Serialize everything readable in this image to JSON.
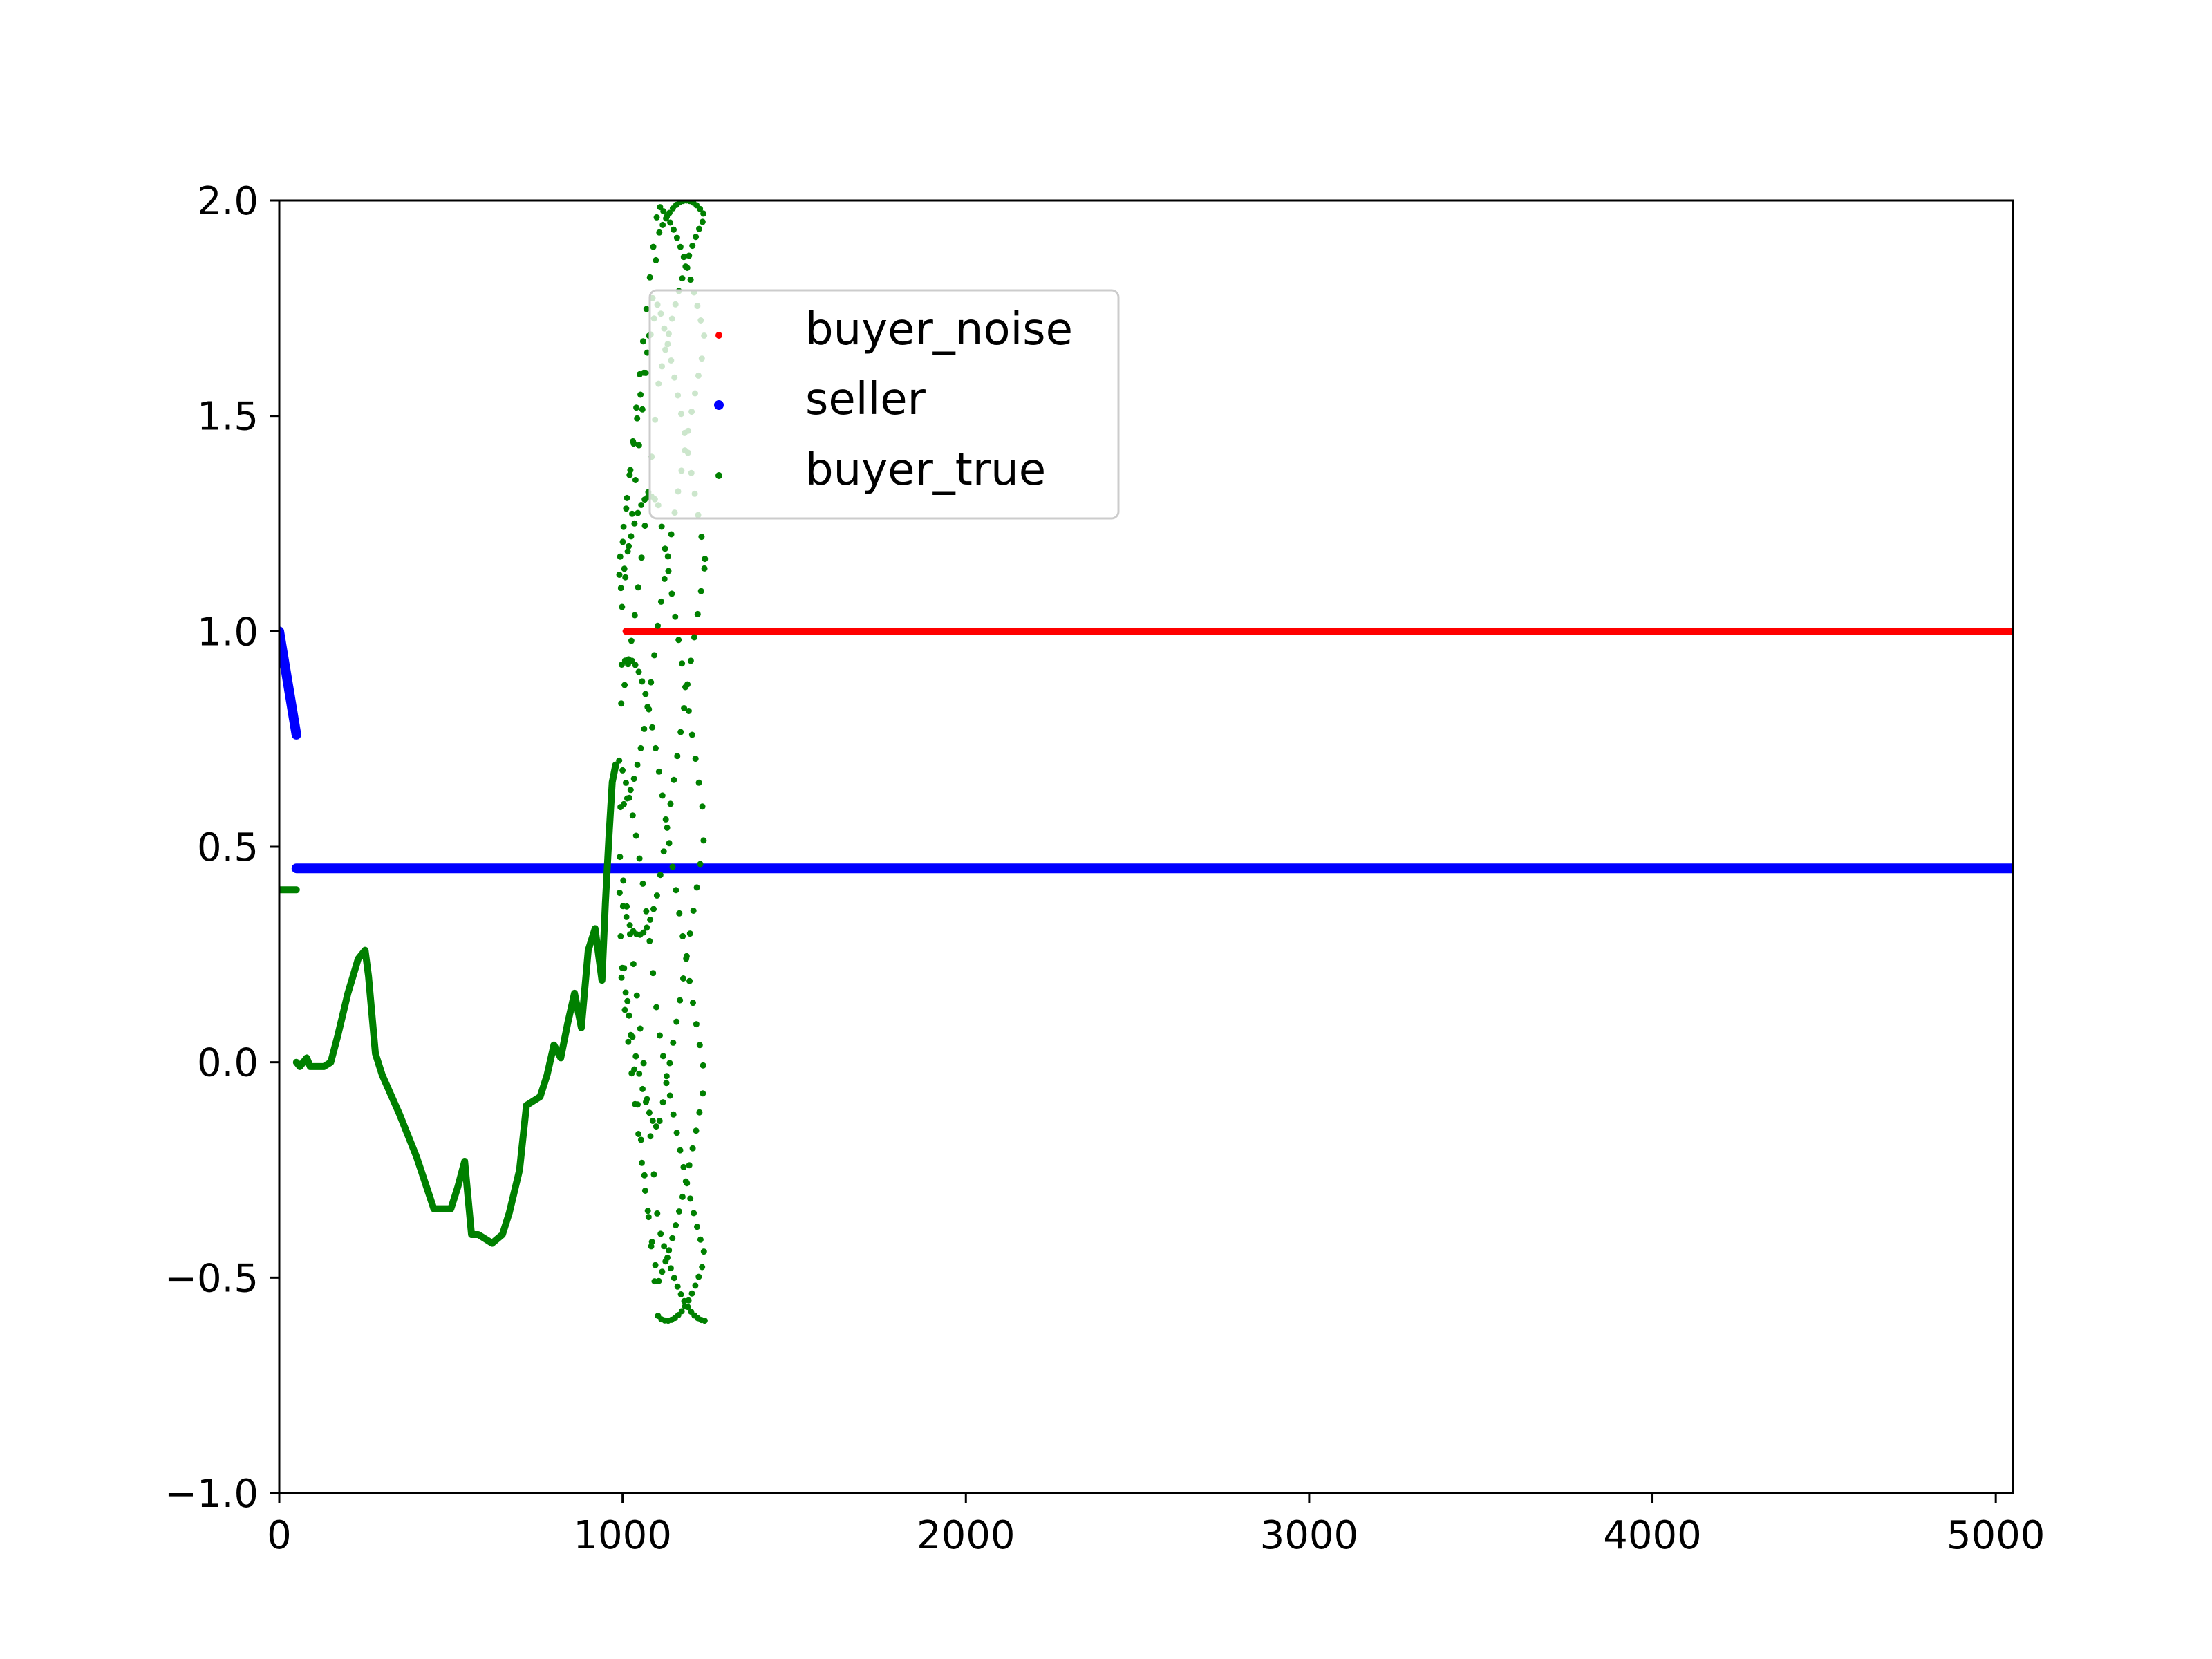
{
  "chart_data": {
    "type": "scatter",
    "title": "",
    "xlabel": "",
    "ylabel": "",
    "xlim": [
      0,
      5050
    ],
    "ylim": [
      -1.0,
      2.0
    ],
    "x_ticks": [
      0,
      1000,
      2000,
      3000,
      4000,
      5000
    ],
    "x_tick_labels": [
      "0",
      "1000",
      "2000",
      "3000",
      "4000",
      "5000"
    ],
    "y_ticks": [
      -1.0,
      -0.5,
      0.0,
      0.5,
      1.0,
      1.5,
      2.0
    ],
    "y_tick_labels": [
      "−1.0",
      "−0.5",
      "0.0",
      "0.5",
      "1.0",
      "1.5",
      "2.0"
    ],
    "grid": false,
    "legend": {
      "placement": "upper-center",
      "entries": [
        "buyer_noise",
        "seller",
        "buyer_true"
      ]
    },
    "series": [
      {
        "name": "buyer_noise",
        "color": "#ff0000",
        "style": "dense",
        "segments": [
          {
            "x": [
              1010,
              5050
            ],
            "y": [
              1.0,
              1.0
            ]
          }
        ]
      },
      {
        "name": "seller",
        "color": "#0000ff",
        "style": "dense",
        "segments": [
          {
            "x": [
              0,
              50
            ],
            "y": [
              1.0,
              0.76
            ]
          },
          {
            "x": [
              50,
              5050
            ],
            "y": [
              0.45,
              0.45
            ]
          }
        ]
      },
      {
        "name": "buyer_true",
        "color": "#008000",
        "style": "dense",
        "segments": [
          {
            "x": [
              0,
              50
            ],
            "y": [
              0.4,
              0.4
            ]
          },
          {
            "x": [
              50,
              60,
              70,
              80,
              90,
              100,
              110,
              130,
              150,
              170,
              200,
              230,
              250,
              260,
              280,
              300,
              350,
              400,
              450,
              500,
              520,
              540,
              560,
              580,
              600,
              620,
              650,
              670,
              700,
              720,
              740,
              760,
              780,
              800,
              820,
              840,
              860,
              880,
              900,
              920,
              940,
              950,
              960,
              970,
              980
            ],
            "y": [
              0.0,
              -0.01,
              0.0,
              0.01,
              -0.01,
              -0.01,
              -0.01,
              -0.01,
              0.0,
              0.06,
              0.16,
              0.24,
              0.26,
              0.2,
              0.02,
              -0.03,
              -0.12,
              -0.22,
              -0.34,
              -0.34,
              -0.29,
              -0.23,
              -0.4,
              -0.4,
              -0.41,
              -0.42,
              -0.4,
              -0.35,
              -0.25,
              -0.1,
              -0.09,
              -0.08,
              -0.03,
              0.04,
              0.01,
              0.09,
              0.16,
              0.08,
              0.26,
              0.31,
              0.19,
              0.37,
              0.52,
              0.65,
              0.69
            ]
          }
        ]
      }
    ],
    "scatter_points": [
      {
        "name": "buyer_true",
        "color": "#008000",
        "x_range": [
          990,
          1240
        ],
        "y_range": [
          -0.6,
          2.0
        ],
        "count": 330
      }
    ]
  }
}
